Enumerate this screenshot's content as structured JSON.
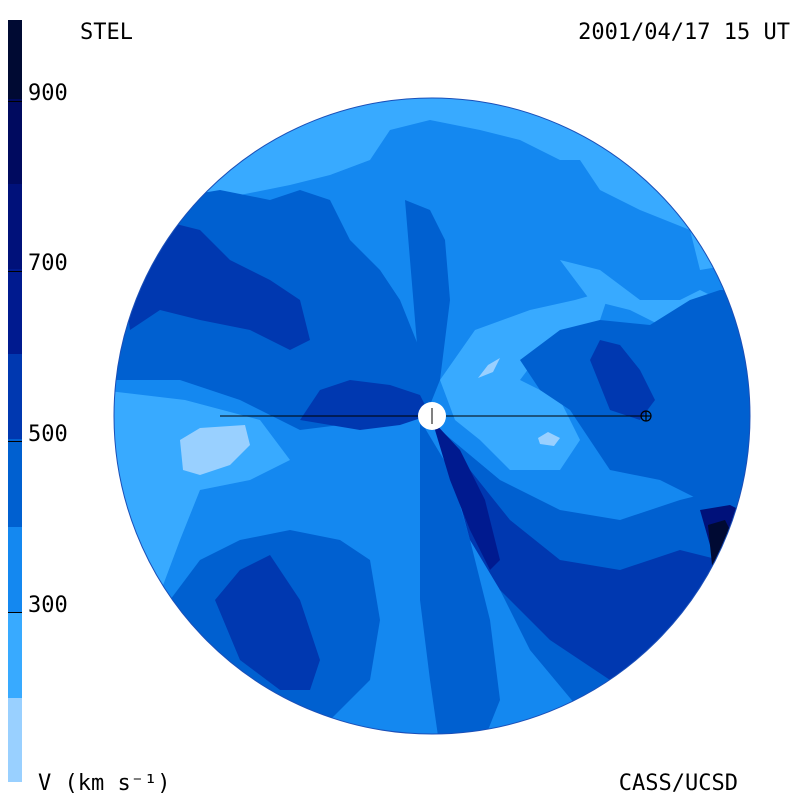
{
  "title_left": "STEL",
  "title_right": "2001/04/17 15 UT",
  "footer_left": "V (km s⁻¹)",
  "footer_right": "CASS/UCSD",
  "colorbar": {
    "ticks": [
      "900",
      "700",
      "500",
      "300"
    ],
    "bands": [
      {
        "from": 900,
        "to": 1000,
        "color": "#000a33"
      },
      {
        "from": 800,
        "to": 900,
        "color": "#000a5f"
      },
      {
        "from": 700,
        "to": 800,
        "color": "#00117a"
      },
      {
        "from": 600,
        "to": 700,
        "color": "#001a8f"
      },
      {
        "from": 500,
        "to": 600,
        "color": "#0038b0"
      },
      {
        "from": 400,
        "to": 500,
        "color": "#0060d0"
      },
      {
        "from": 300,
        "to": 400,
        "color": "#1488f0"
      },
      {
        "from": 200,
        "to": 300,
        "color": "#38aaff"
      },
      {
        "from": 100,
        "to": 200,
        "color": "#99d0ff"
      }
    ]
  },
  "chart_data": {
    "type": "heatmap",
    "title": "STEL",
    "timestamp": "2001/04/17 15 UT",
    "colorbar_label": "V (km s⁻¹)",
    "colorbar_range": [
      100,
      1000
    ],
    "colorbar_ticks": [
      900,
      700,
      500,
      300
    ],
    "credit": "CASS/UCSD"
  }
}
